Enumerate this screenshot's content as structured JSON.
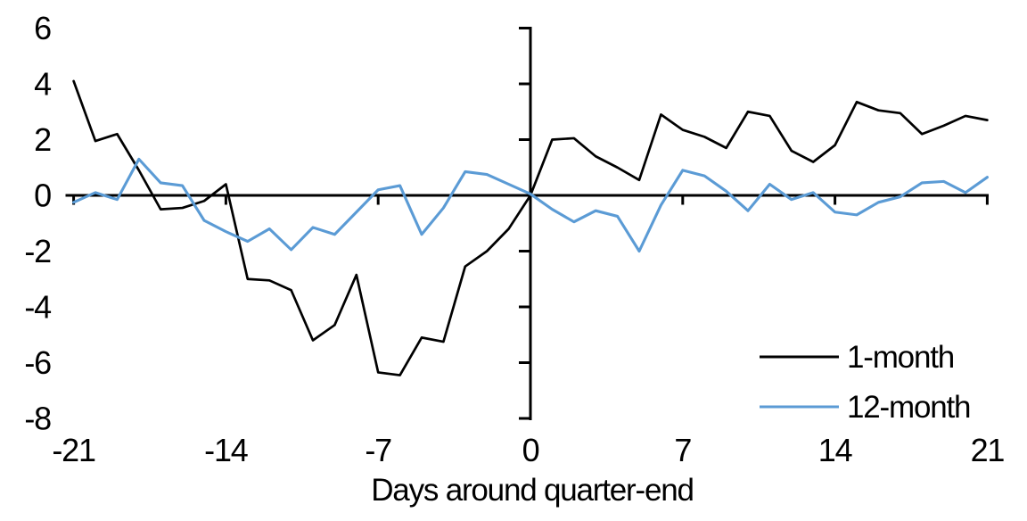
{
  "chart_data": {
    "type": "line",
    "title": "",
    "xlabel": "Days around quarter-end",
    "ylabel": "",
    "xlim": [
      -21,
      21
    ],
    "ylim": [
      -8,
      6
    ],
    "x_ticks": [
      -21,
      -14,
      -7,
      0,
      7,
      14,
      21
    ],
    "y_ticks": [
      6,
      4,
      2,
      0,
      -2,
      -4,
      -6,
      -8
    ],
    "grid": false,
    "legend_position": "inside-bottom-right",
    "x": [
      -21,
      -20,
      -19,
      -18,
      -17,
      -16,
      -15,
      -14,
      -13,
      -12,
      -11,
      -10,
      -9,
      -8,
      -7,
      -6,
      -5,
      -4,
      -3,
      -2,
      -1,
      0,
      1,
      2,
      3,
      4,
      5,
      6,
      7,
      8,
      9,
      10,
      11,
      12,
      13,
      14,
      15,
      16,
      17,
      18,
      19,
      20,
      21
    ],
    "series": [
      {
        "name": "1-month",
        "color": "#000000",
        "values": [
          4.1,
          1.95,
          2.2,
          0.9,
          -0.5,
          -0.45,
          -0.2,
          0.4,
          -3.0,
          -3.05,
          -3.4,
          -5.2,
          -4.65,
          -2.85,
          -6.35,
          -6.45,
          -5.1,
          -5.25,
          -2.55,
          -2.0,
          -1.2,
          0.0,
          2.0,
          2.05,
          1.4,
          1.0,
          0.55,
          2.9,
          2.35,
          2.1,
          1.7,
          3.0,
          2.85,
          1.6,
          1.2,
          1.8,
          3.35,
          3.05,
          2.95,
          2.2,
          2.5,
          2.85,
          2.7
        ]
      },
      {
        "name": "12-month",
        "color": "#5B9BD5",
        "values": [
          -0.25,
          0.1,
          -0.15,
          1.3,
          0.45,
          0.35,
          -0.9,
          -1.3,
          -1.65,
          -1.2,
          -1.95,
          -1.15,
          -1.4,
          -0.6,
          0.2,
          0.35,
          -1.4,
          -0.45,
          0.85,
          0.75,
          0.4,
          0.05,
          -0.5,
          -0.95,
          -0.55,
          -0.75,
          -2.0,
          -0.35,
          0.9,
          0.7,
          0.15,
          -0.55,
          0.4,
          -0.15,
          0.1,
          -0.6,
          -0.7,
          -0.25,
          -0.05,
          0.45,
          0.5,
          0.1,
          0.65
        ]
      }
    ]
  }
}
